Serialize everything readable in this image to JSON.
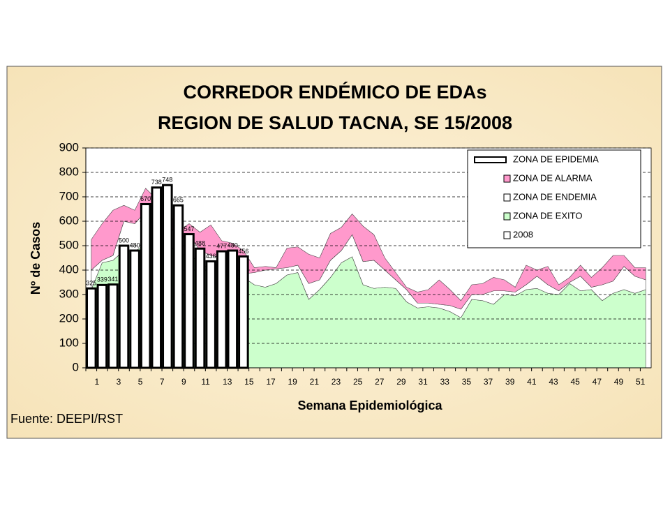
{
  "chart_data": {
    "type": "stacked-area-bar",
    "title": "CORREDOR ENDÉMICO DE EDAs",
    "subtitle": "REGION DE SALUD TACNA,  SE 15/2008",
    "y_label": "Nº de Casos",
    "x_label": "Semana Epidemiológica",
    "source": "Fuente: DEEPI/RST",
    "categories": [
      1,
      null,
      3,
      null,
      5,
      null,
      7,
      null,
      9,
      null,
      11,
      null,
      13,
      null,
      15,
      null,
      17,
      null,
      19,
      null,
      21,
      null,
      23,
      null,
      25,
      null,
      27,
      null,
      29,
      null,
      31,
      null,
      33,
      null,
      35,
      null,
      37,
      null,
      39,
      null,
      41,
      null,
      43,
      null,
      45,
      null,
      47,
      null,
      49,
      null,
      51,
      null
    ],
    "ylim": [
      0,
      900
    ],
    "yticks": [
      0,
      100,
      200,
      300,
      400,
      500,
      600,
      700,
      800,
      900
    ],
    "grid": true,
    "legend": "upper right",
    "series": [
      {
        "name": "ZONA DE EPIDEMIA",
        "color": "#ffffff"
      },
      {
        "name": "ZONA DE ALARMA",
        "color": "#ff99cc",
        "values": [
          125,
          150,
          185,
          65,
          55,
          95,
          70,
          55,
          35,
          45,
          75,
          125,
          70,
          135,
          95,
          20,
          15,
          5,
          80,
          75,
          120,
          90,
          110,
          95,
          85,
          145,
          105,
          50,
          30,
          10,
          45,
          55,
          100,
          65,
          35,
          40,
          45,
          55,
          45,
          20,
          80,
          25,
          75,
          25,
          20,
          45,
          40,
          70,
          105,
          45,
          35,
          50
        ]
      },
      {
        "name": "ZONA DE ENDEMIA",
        "color": "#ffffff",
        "values": [
          80,
          10,
          20,
          120,
          115,
          130,
          95,
          75,
          75,
          70,
          60,
          50,
          10,
          15,
          15,
          50,
          70,
          60,
          30,
          30,
          65,
          40,
          70,
          50,
          90,
          95,
          115,
          70,
          35,
          50,
          20,
          15,
          15,
          25,
          35,
          20,
          25,
          55,
          15,
          15,
          20,
          50,
          35,
          15,
          5,
          60,
          10,
          65,
          50,
          95,
          70,
          40
        ]
      },
      {
        "name": "ZONA DE EXITO",
        "color": "#ccffcc",
        "values": [
          320,
          430,
          440,
          480,
          475,
          510,
          525,
          530,
          450,
          475,
          420,
          410,
          440,
          360,
          370,
          340,
          330,
          345,
          380,
          390,
          280,
          320,
          370,
          430,
          455,
          340,
          325,
          330,
          325,
          270,
          245,
          250,
          245,
          230,
          205,
          280,
          275,
          260,
          300,
          295,
          320,
          325,
          305,
          300,
          345,
          315,
          320,
          275,
          305,
          320,
          305,
          320
        ]
      },
      {
        "name": "2008",
        "color": "#ffffff",
        "values": [
          325,
          339,
          341,
          500,
          480,
          670,
          738,
          748,
          665,
          547,
          488,
          436,
          477,
          480,
          456,
          null,
          null,
          null,
          null,
          null,
          null,
          null,
          null,
          null,
          null,
          null,
          null,
          null,
          null,
          null,
          null,
          null,
          null,
          null,
          null,
          null,
          null,
          null,
          null,
          null,
          null,
          null,
          null,
          null,
          null,
          null,
          null,
          null,
          null,
          null,
          null,
          null
        ]
      }
    ]
  }
}
